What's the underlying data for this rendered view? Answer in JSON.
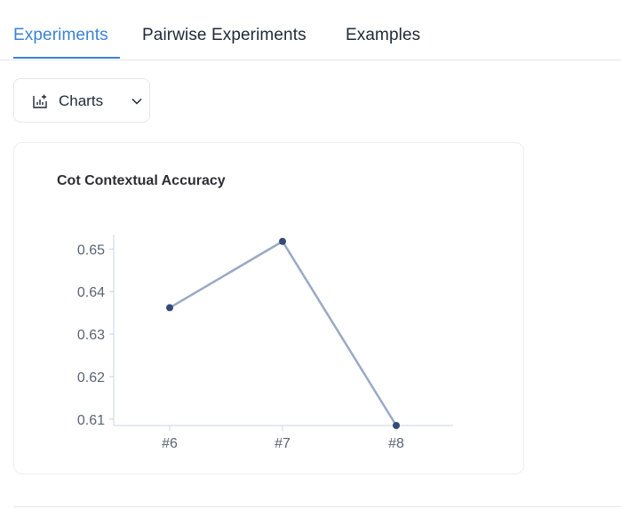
{
  "tabs": [
    {
      "label": "Experiments",
      "active": true
    },
    {
      "label": "Pairwise Experiments",
      "active": false
    },
    {
      "label": "Examples",
      "active": false
    }
  ],
  "toolbar": {
    "charts_label": "Charts",
    "charts_icon": "bar-chart-add-icon",
    "dropdown_icon": "chevron-down-icon"
  },
  "colors": {
    "accent": "#3b82d6",
    "line": "#9aa9c4",
    "point": "#334a7a",
    "axis": "#c9d3e3",
    "tick_text": "#5b6473"
  },
  "chart_data": {
    "type": "line",
    "title": "Cot Contextual Accuracy",
    "categories": [
      "#6",
      "#7",
      "#8"
    ],
    "values": [
      0.6362,
      0.6518,
      0.6085
    ],
    "y_ticks": [
      0.61,
      0.62,
      0.63,
      0.64,
      0.65
    ],
    "y_tick_labels": [
      "0.61",
      "0.62",
      "0.63",
      "0.64",
      "0.65"
    ],
    "ylim": [
      0.6085,
      0.653
    ],
    "grid": false,
    "xlabel": "",
    "ylabel": ""
  }
}
